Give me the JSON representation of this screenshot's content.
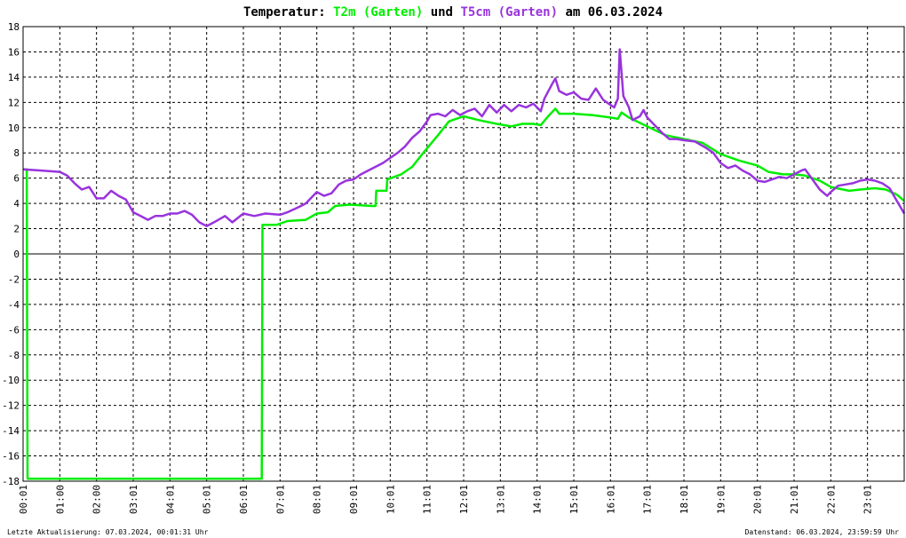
{
  "chart_data": {
    "type": "line",
    "title": {
      "prefix": "Temperatur:",
      "series1": "T2m (Garten)",
      "joiner": "und",
      "series2": "T5cm (Garten)",
      "suffix": "am 06.03.2024"
    },
    "ylim": [
      -18,
      18
    ],
    "xlim": [
      0,
      24
    ],
    "grid": true,
    "y_ticks": [
      "18",
      "16",
      "14",
      "12",
      "10",
      "8",
      "6",
      "4",
      "2",
      "0",
      "-2",
      "-4",
      "-6",
      "-8",
      "-10",
      "-12",
      "-14",
      "-16",
      "-18"
    ],
    "x_ticks": [
      "00:01",
      "01:00",
      "02:00",
      "03:01",
      "04:01",
      "05:01",
      "06:01",
      "07:01",
      "08:01",
      "09:01",
      "10:01",
      "11:01",
      "12:01",
      "13:01",
      "14:01",
      "15:01",
      "16:01",
      "17:01",
      "18:01",
      "19:01",
      "20:01",
      "21:01",
      "22:01",
      "23:01"
    ],
    "series": [
      {
        "name": "T2m (Garten)",
        "color": "#00ee00",
        "points": [
          [
            0.02,
            6.7
          ],
          [
            0.1,
            6.7
          ],
          [
            0.12,
            -17.8
          ],
          [
            6.5,
            -17.8
          ],
          [
            6.52,
            2.3
          ],
          [
            6.9,
            2.3
          ],
          [
            7.2,
            2.6
          ],
          [
            7.7,
            2.7
          ],
          [
            8.0,
            3.2
          ],
          [
            8.3,
            3.3
          ],
          [
            8.5,
            3.8
          ],
          [
            8.9,
            3.9
          ],
          [
            9.5,
            3.8
          ],
          [
            9.6,
            3.8
          ],
          [
            9.62,
            5.0
          ],
          [
            9.9,
            5.0
          ],
          [
            9.92,
            5.9
          ],
          [
            10.3,
            6.3
          ],
          [
            10.6,
            6.9
          ],
          [
            10.9,
            8.0
          ],
          [
            11.3,
            9.4
          ],
          [
            11.6,
            10.5
          ],
          [
            12.0,
            10.9
          ],
          [
            12.4,
            10.6
          ],
          [
            12.9,
            10.3
          ],
          [
            13.3,
            10.1
          ],
          [
            13.6,
            10.3
          ],
          [
            13.9,
            10.3
          ],
          [
            14.1,
            10.2
          ],
          [
            14.3,
            10.9
          ],
          [
            14.5,
            11.5
          ],
          [
            14.6,
            11.1
          ],
          [
            15.0,
            11.1
          ],
          [
            15.5,
            11.0
          ],
          [
            16.0,
            10.8
          ],
          [
            16.2,
            10.7
          ],
          [
            16.3,
            11.2
          ],
          [
            16.5,
            10.8
          ],
          [
            17.0,
            10.1
          ],
          [
            17.5,
            9.4
          ],
          [
            18.0,
            9.1
          ],
          [
            18.5,
            8.8
          ],
          [
            19.0,
            7.9
          ],
          [
            19.5,
            7.4
          ],
          [
            20.0,
            7.0
          ],
          [
            20.3,
            6.5
          ],
          [
            20.7,
            6.3
          ],
          [
            21.0,
            6.3
          ],
          [
            21.3,
            6.2
          ],
          [
            21.7,
            5.8
          ],
          [
            22.0,
            5.3
          ],
          [
            22.5,
            5.0
          ],
          [
            22.8,
            5.1
          ],
          [
            23.2,
            5.2
          ],
          [
            23.5,
            5.1
          ],
          [
            23.8,
            4.7
          ],
          [
            24.0,
            4.2
          ]
        ]
      },
      {
        "name": "T5cm (Garten)",
        "color": "#9933dd",
        "points": [
          [
            0.0,
            6.7
          ],
          [
            0.5,
            6.6
          ],
          [
            1.0,
            6.5
          ],
          [
            1.2,
            6.2
          ],
          [
            1.4,
            5.6
          ],
          [
            1.6,
            5.1
          ],
          [
            1.8,
            5.3
          ],
          [
            2.0,
            4.4
          ],
          [
            2.2,
            4.4
          ],
          [
            2.4,
            5.0
          ],
          [
            2.6,
            4.6
          ],
          [
            2.8,
            4.3
          ],
          [
            3.0,
            3.3
          ],
          [
            3.2,
            3.0
          ],
          [
            3.4,
            2.7
          ],
          [
            3.6,
            3.0
          ],
          [
            3.8,
            3.0
          ],
          [
            4.0,
            3.2
          ],
          [
            4.2,
            3.2
          ],
          [
            4.4,
            3.4
          ],
          [
            4.6,
            3.1
          ],
          [
            4.8,
            2.5
          ],
          [
            5.0,
            2.2
          ],
          [
            5.2,
            2.5
          ],
          [
            5.5,
            3.0
          ],
          [
            5.7,
            2.5
          ],
          [
            6.0,
            3.2
          ],
          [
            6.3,
            3.0
          ],
          [
            6.6,
            3.2
          ],
          [
            7.0,
            3.1
          ],
          [
            7.2,
            3.3
          ],
          [
            7.5,
            3.7
          ],
          [
            7.7,
            4.0
          ],
          [
            8.0,
            4.9
          ],
          [
            8.2,
            4.6
          ],
          [
            8.4,
            4.8
          ],
          [
            8.6,
            5.5
          ],
          [
            8.8,
            5.8
          ],
          [
            9.0,
            5.9
          ],
          [
            9.2,
            6.3
          ],
          [
            9.4,
            6.6
          ],
          [
            9.6,
            6.9
          ],
          [
            9.8,
            7.2
          ],
          [
            10.0,
            7.6
          ],
          [
            10.2,
            8.0
          ],
          [
            10.4,
            8.5
          ],
          [
            10.6,
            9.2
          ],
          [
            10.8,
            9.7
          ],
          [
            11.0,
            10.5
          ],
          [
            11.1,
            11.0
          ],
          [
            11.3,
            11.1
          ],
          [
            11.5,
            10.9
          ],
          [
            11.7,
            11.4
          ],
          [
            11.9,
            11.0
          ],
          [
            12.1,
            11.3
          ],
          [
            12.3,
            11.5
          ],
          [
            12.5,
            10.9
          ],
          [
            12.7,
            11.8
          ],
          [
            12.9,
            11.2
          ],
          [
            13.1,
            11.8
          ],
          [
            13.3,
            11.3
          ],
          [
            13.5,
            11.8
          ],
          [
            13.7,
            11.6
          ],
          [
            13.9,
            11.9
          ],
          [
            14.1,
            11.3
          ],
          [
            14.2,
            12.3
          ],
          [
            14.4,
            13.4
          ],
          [
            14.5,
            13.9
          ],
          [
            14.6,
            12.9
          ],
          [
            14.8,
            12.6
          ],
          [
            15.0,
            12.8
          ],
          [
            15.2,
            12.3
          ],
          [
            15.4,
            12.2
          ],
          [
            15.6,
            13.1
          ],
          [
            15.8,
            12.2
          ],
          [
            16.0,
            11.8
          ],
          [
            16.1,
            11.6
          ],
          [
            16.2,
            12.3
          ],
          [
            16.25,
            16.2
          ],
          [
            16.35,
            12.5
          ],
          [
            16.5,
            11.6
          ],
          [
            16.6,
            10.6
          ],
          [
            16.8,
            10.9
          ],
          [
            16.9,
            11.4
          ],
          [
            17.0,
            10.8
          ],
          [
            17.2,
            10.2
          ],
          [
            17.4,
            9.6
          ],
          [
            17.6,
            9.1
          ],
          [
            17.8,
            9.1
          ],
          [
            18.0,
            9.0
          ],
          [
            18.3,
            8.9
          ],
          [
            18.6,
            8.4
          ],
          [
            18.8,
            8.0
          ],
          [
            19.0,
            7.2
          ],
          [
            19.2,
            6.8
          ],
          [
            19.4,
            7.0
          ],
          [
            19.6,
            6.6
          ],
          [
            19.8,
            6.3
          ],
          [
            20.0,
            5.8
          ],
          [
            20.2,
            5.7
          ],
          [
            20.4,
            5.9
          ],
          [
            20.6,
            6.1
          ],
          [
            20.8,
            6.0
          ],
          [
            21.0,
            6.3
          ],
          [
            21.2,
            6.6
          ],
          [
            21.3,
            6.7
          ],
          [
            21.5,
            5.9
          ],
          [
            21.7,
            5.1
          ],
          [
            21.9,
            4.6
          ],
          [
            22.0,
            4.9
          ],
          [
            22.2,
            5.4
          ],
          [
            22.4,
            5.5
          ],
          [
            22.6,
            5.6
          ],
          [
            22.8,
            5.8
          ],
          [
            23.0,
            5.9
          ],
          [
            23.2,
            5.8
          ],
          [
            23.4,
            5.6
          ],
          [
            23.6,
            5.2
          ],
          [
            23.8,
            4.2
          ],
          [
            24.0,
            3.2
          ]
        ]
      }
    ]
  },
  "footer": {
    "left": "Letzte Aktualisierung: 07.03.2024, 00:01:31 Uhr",
    "right": "Datenstand: 06.03.2024, 23:59:59 Uhr"
  }
}
